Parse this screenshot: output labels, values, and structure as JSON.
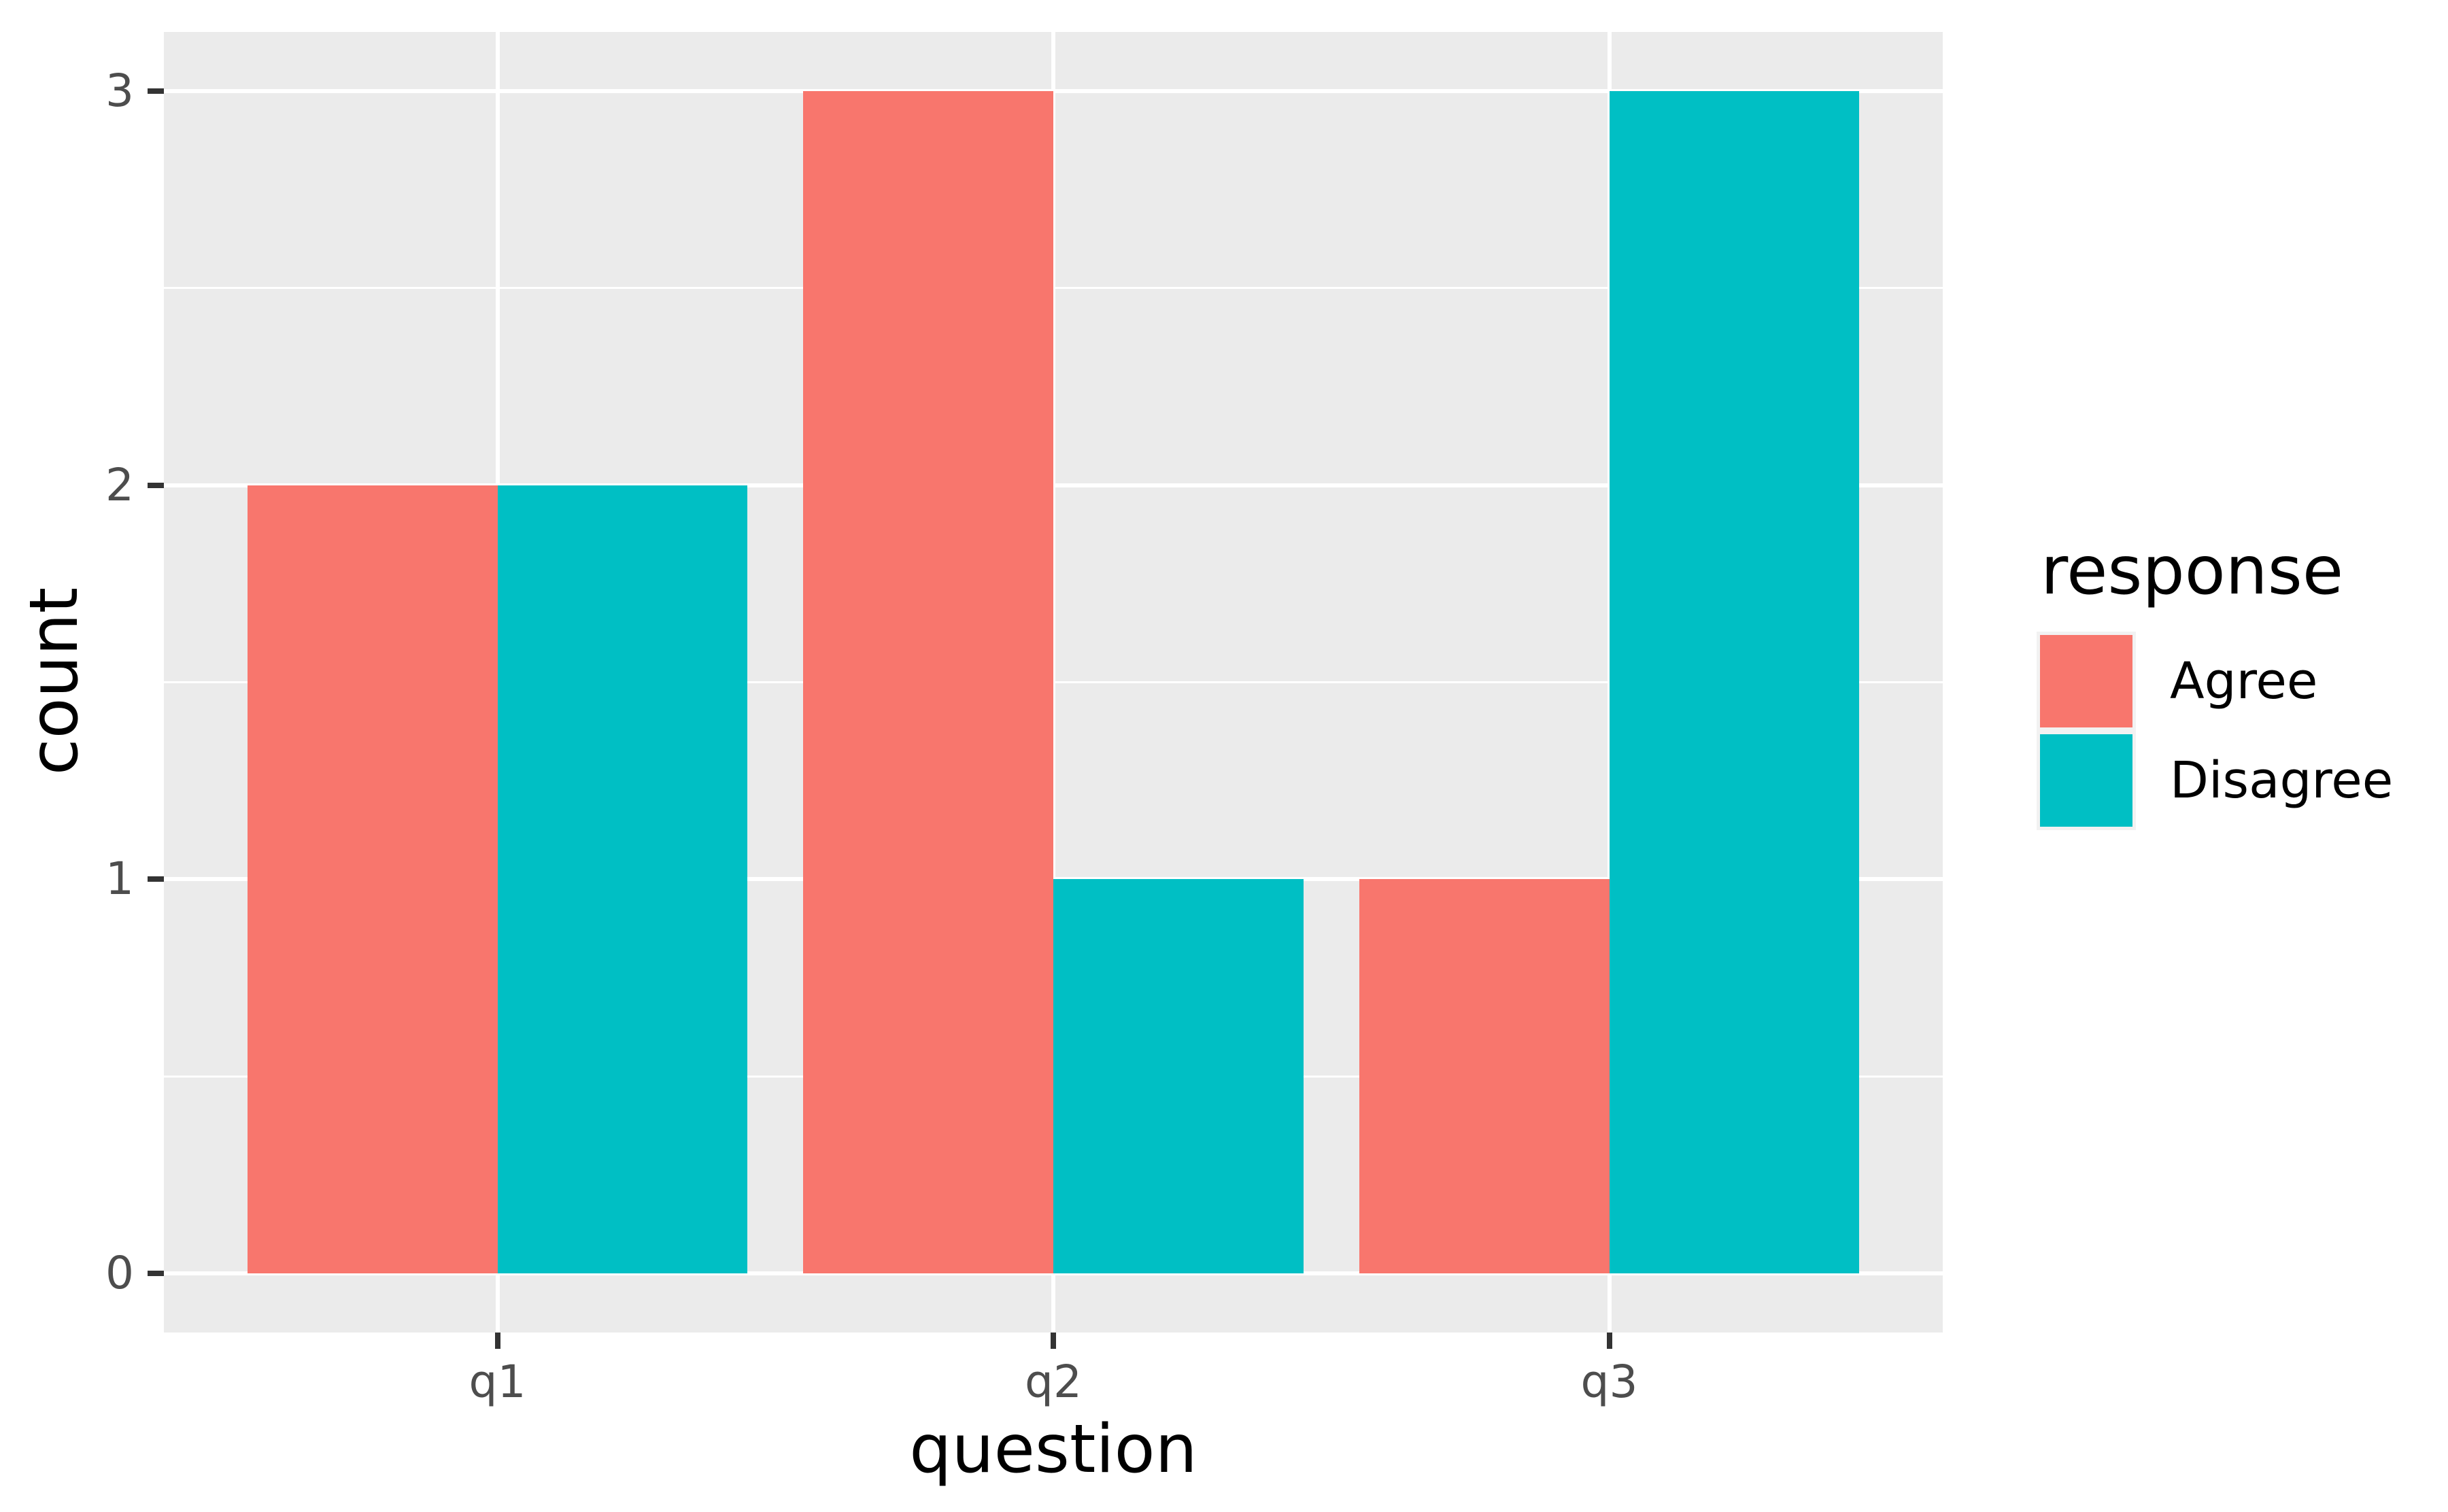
{
  "chart_data": {
    "type": "bar",
    "grouping": "dodge",
    "title": "",
    "categories": [
      "q1",
      "q2",
      "q3"
    ],
    "series": [
      {
        "name": "Agree",
        "color": "#F8766D",
        "values": [
          2,
          3,
          1
        ]
      },
      {
        "name": "Disagree",
        "color": "#00BFC4",
        "values": [
          2,
          1,
          3
        ]
      }
    ],
    "xlabel": "question",
    "ylabel": "count",
    "ylim": [
      0,
      3
    ],
    "y_ticks": [
      0,
      1,
      2,
      3
    ],
    "y_minor_ticks": [
      0.5,
      1.5,
      2.5
    ],
    "legend_title": "response",
    "legend_position": "right",
    "grid": true,
    "colors": {
      "panel_background": "#EBEBEB",
      "gridline": "#FFFFFF",
      "tick_mark": "#333333",
      "tick_label": "#4D4D4D",
      "axis_title": "#000000",
      "legend_key_background": "#F2F2F2"
    }
  }
}
